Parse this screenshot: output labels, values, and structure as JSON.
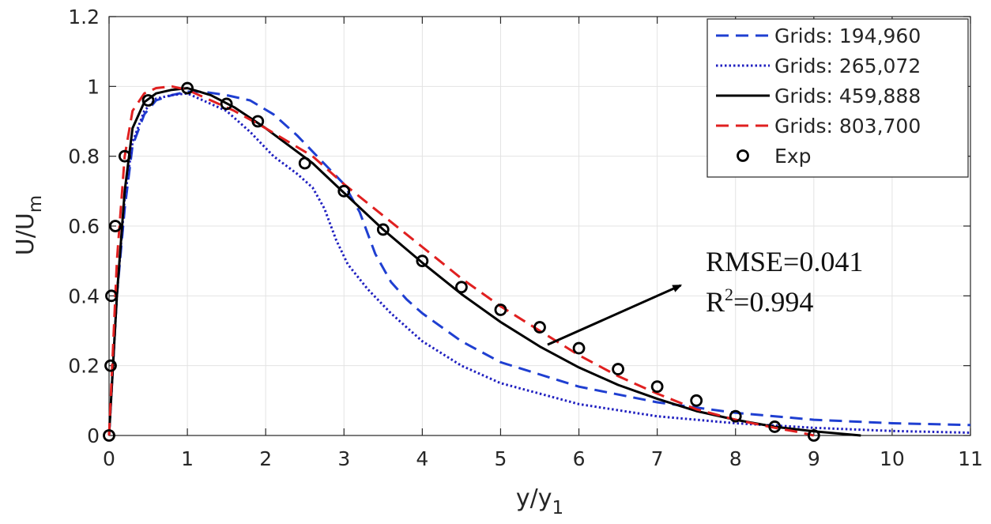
{
  "chart_data": {
    "type": "line",
    "xlabel": "y/y",
    "xlabel_subscript": "1",
    "ylabel": "U/U",
    "ylabel_subscript": "m",
    "xlim": [
      0,
      11
    ],
    "ylim": [
      0,
      1.2
    ],
    "xticks": [
      "0",
      "1",
      "2",
      "3",
      "4",
      "5",
      "6",
      "7",
      "8",
      "9",
      "10",
      "11"
    ],
    "yticks": [
      "0",
      "0.2",
      "0.4",
      "0.6",
      "0.8",
      "1",
      "1.2"
    ],
    "grid": true,
    "legend_position": "top-right",
    "series": [
      {
        "name": "Grids: 194,960",
        "color": "#1f3fd1",
        "style": "dashed",
        "x": [
          0,
          0.05,
          0.1,
          0.2,
          0.3,
          0.45,
          0.6,
          0.8,
          1.0,
          1.2,
          1.5,
          1.8,
          2.1,
          2.4,
          2.7,
          3.0,
          3.2,
          3.4,
          3.6,
          3.8,
          4.0,
          4.5,
          5.0,
          6.0,
          7.0,
          8.0,
          9.0,
          10.0,
          11.0
        ],
        "y": [
          0,
          0.2,
          0.4,
          0.65,
          0.83,
          0.92,
          0.96,
          0.975,
          0.985,
          0.985,
          0.975,
          0.96,
          0.92,
          0.86,
          0.79,
          0.72,
          0.64,
          0.52,
          0.44,
          0.39,
          0.35,
          0.27,
          0.21,
          0.14,
          0.095,
          0.065,
          0.045,
          0.035,
          0.03
        ]
      },
      {
        "name": "Grids: 265,072",
        "color": "#2020c0",
        "style": "dotted",
        "x": [
          0,
          0.05,
          0.1,
          0.2,
          0.3,
          0.45,
          0.6,
          0.8,
          1.0,
          1.2,
          1.5,
          1.8,
          2.1,
          2.4,
          2.6,
          2.75,
          2.9,
          3.05,
          3.3,
          3.6,
          4.0,
          4.5,
          5.0,
          6.0,
          7.0,
          8.0,
          9.0,
          10.0,
          11.0
        ],
        "y": [
          0,
          0.2,
          0.4,
          0.68,
          0.84,
          0.93,
          0.965,
          0.975,
          0.98,
          0.96,
          0.93,
          0.87,
          0.8,
          0.75,
          0.71,
          0.65,
          0.56,
          0.49,
          0.42,
          0.35,
          0.27,
          0.2,
          0.15,
          0.09,
          0.055,
          0.035,
          0.022,
          0.013,
          0.008
        ]
      },
      {
        "name": "Grids: 459,888",
        "color": "#000000",
        "style": "solid",
        "x": [
          0,
          0.05,
          0.1,
          0.2,
          0.3,
          0.45,
          0.6,
          0.8,
          1.0,
          1.3,
          1.6,
          2.0,
          2.3,
          2.6,
          3.0,
          3.5,
          4.0,
          4.5,
          5.0,
          5.5,
          6.0,
          6.5,
          7.0,
          7.5,
          8.0,
          8.5,
          9.0,
          9.6
        ],
        "y": [
          0,
          0.2,
          0.4,
          0.7,
          0.88,
          0.955,
          0.98,
          0.99,
          0.995,
          0.975,
          0.94,
          0.88,
          0.83,
          0.78,
          0.695,
          0.59,
          0.495,
          0.405,
          0.325,
          0.255,
          0.195,
          0.145,
          0.105,
          0.07,
          0.045,
          0.025,
          0.012,
          0
        ]
      },
      {
        "name": "Grids: 803,700",
        "color": "#e02020",
        "style": "dashed",
        "x": [
          0,
          0.05,
          0.1,
          0.2,
          0.3,
          0.45,
          0.6,
          0.8,
          1.0,
          1.3,
          1.6,
          2.0,
          2.3,
          2.6,
          3.0,
          3.5,
          4.0,
          4.5,
          5.0,
          5.5,
          6.0,
          6.5,
          7.0,
          7.5,
          8.0,
          8.5,
          8.8,
          9.0
        ],
        "y": [
          0,
          0.25,
          0.5,
          0.8,
          0.93,
          0.98,
          0.995,
          1.0,
          0.99,
          0.96,
          0.93,
          0.88,
          0.84,
          0.8,
          0.72,
          0.63,
          0.54,
          0.45,
          0.37,
          0.3,
          0.23,
          0.17,
          0.12,
          0.075,
          0.045,
          0.022,
          0.01,
          0
        ]
      }
    ],
    "exp": {
      "name": "Exp",
      "color": "#000000",
      "marker": "circle",
      "x": [
        0.0,
        0.02,
        0.03,
        0.08,
        0.2,
        0.5,
        1.0,
        1.5,
        1.9,
        2.5,
        3.0,
        3.5,
        4.0,
        4.5,
        5.0,
        5.5,
        6.0,
        6.5,
        7.0,
        7.5,
        8.0,
        8.5,
        9.0
      ],
      "y": [
        0.0,
        0.2,
        0.4,
        0.6,
        0.8,
        0.96,
        0.995,
        0.95,
        0.9,
        0.78,
        0.7,
        0.59,
        0.5,
        0.425,
        0.36,
        0.31,
        0.25,
        0.19,
        0.14,
        0.1,
        0.055,
        0.025,
        0.0
      ]
    },
    "annotation": {
      "line1": "RMSE=0.041",
      "line2_prefix": "R",
      "line2_sup": "2",
      "line2_suffix": "=0.994",
      "arrow_from": [
        5.6,
        0.26
      ],
      "arrow_to": [
        7.3,
        0.43
      ]
    }
  }
}
